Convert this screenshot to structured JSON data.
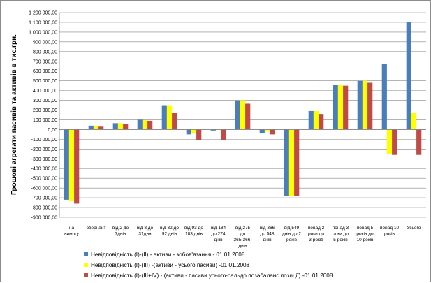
{
  "chart_data": {
    "type": "bar",
    "ylabel": "Грошові агрегати пасивів та активів в тис.грн.",
    "ylim": [
      -900000,
      1200000
    ],
    "ytick_step": 100000,
    "ytick_labels": [
      "1 200 000,00",
      "1 100 000,00",
      "1 000 000,00",
      "900 000,00",
      "800 000,00",
      "700 000,00",
      "600 000,00",
      "500 000,00",
      "400 000,00",
      "300 000,00",
      "200 000,00",
      "100 000,00",
      "0,00",
      "-100 000,00",
      "-200 000,00",
      "-300 000,00",
      "-400 000,00",
      "-500 000,00",
      "-600 000,00",
      "-700 000,00",
      "-800 000,00",
      "-900 000,00"
    ],
    "grid": true,
    "legend_position": "bottom",
    "categories": [
      [
        "на",
        "вимогу"
      ],
      [
        "овернайт"
      ],
      [
        "від 2 до",
        "7днів"
      ],
      [
        "від 8 до",
        "31дня"
      ],
      [
        "від 32 до",
        "92 днів"
      ],
      [
        "від 93 до",
        "183 днів"
      ],
      [
        "від 184",
        "до 274",
        "днів"
      ],
      [
        "від 275",
        "до",
        "365(366)",
        "днів"
      ],
      [
        "від 366",
        "до 548",
        "днів"
      ],
      [
        "від 549",
        "днів до 2",
        "років"
      ],
      [
        "понад 2",
        "роки до",
        "3 років"
      ],
      [
        "понад 3",
        "роки до",
        "5 років"
      ],
      [
        "понад 5",
        "років до",
        "10 років"
      ],
      [
        "понад 10",
        "років"
      ],
      [
        "Усього"
      ]
    ],
    "series": [
      {
        "name": "Невідповідність (І)-(ІІ) - активи - зобов'язання - 01.01.2008",
        "color": "#4a7ebb",
        "values": [
          -720000,
          40000,
          65000,
          100000,
          250000,
          -50000,
          -10000,
          300000,
          -40000,
          -680000,
          190000,
          460000,
          500000,
          670000,
          1100000
        ]
      },
      {
        "name": "Невідповідність (І)-(ІІІ) -(активи - усього пасиви) -01.01.2008",
        "color": "#ffff00",
        "values": [
          -730000,
          40000,
          65000,
          95000,
          250000,
          -40000,
          -5000,
          300000,
          -20000,
          -680000,
          190000,
          460000,
          500000,
          -250000,
          170000
        ]
      },
      {
        "name": "Невідповідність (І)-(ІІІ+ІV) - (активи - пасиви усього-сальдо позабаланс.позиції) -01.01.2008",
        "color": "#be4b48",
        "values": [
          -760000,
          30000,
          60000,
          90000,
          170000,
          -110000,
          -110000,
          265000,
          -50000,
          -680000,
          160000,
          450000,
          480000,
          -260000,
          -260000
        ]
      }
    ]
  }
}
